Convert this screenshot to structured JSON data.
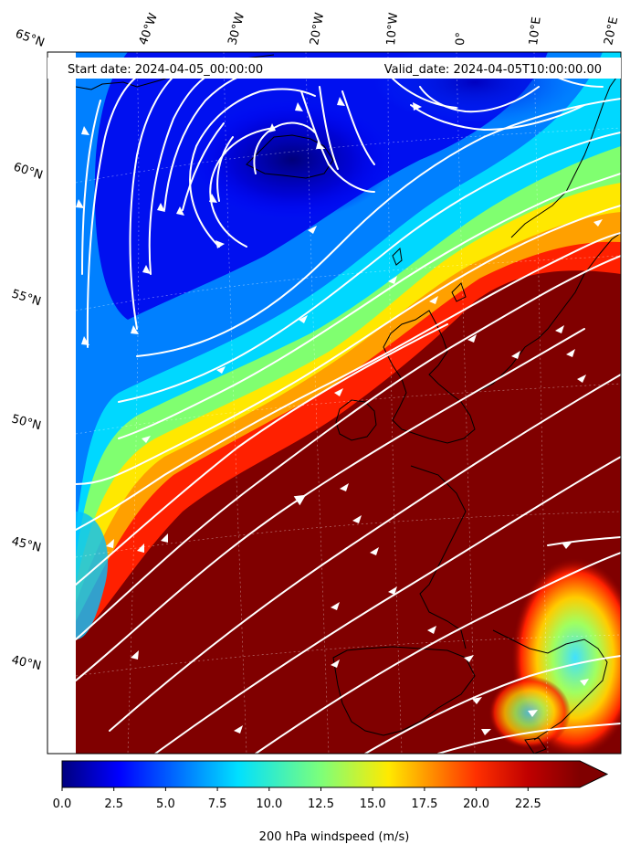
{
  "header": {
    "start_date": "Start date: 2024-04-05_00:00:00",
    "valid_date": "Valid_date: 2024-04-05T10:00:00.00"
  },
  "map": {
    "lon_labels": [
      "40°W",
      "30°W",
      "20°W",
      "10°W",
      "0°",
      "10°E",
      "20°E"
    ],
    "lat_labels": [
      "65°N",
      "60°N",
      "55°N",
      "50°N",
      "45°N",
      "40°N"
    ]
  },
  "colorbar": {
    "ticks": [
      "0.0",
      "2.5",
      "5.0",
      "7.5",
      "10.0",
      "12.5",
      "15.0",
      "17.5",
      "20.0",
      "22.5"
    ],
    "min": 0,
    "max": 25,
    "extend": "max",
    "colormap": "jet",
    "label": "200 hPa windspeed (m/s)"
  },
  "colors": {
    "streamlines": "#ffffff",
    "coastlines": "#000000",
    "max_wind": "#800000"
  }
}
